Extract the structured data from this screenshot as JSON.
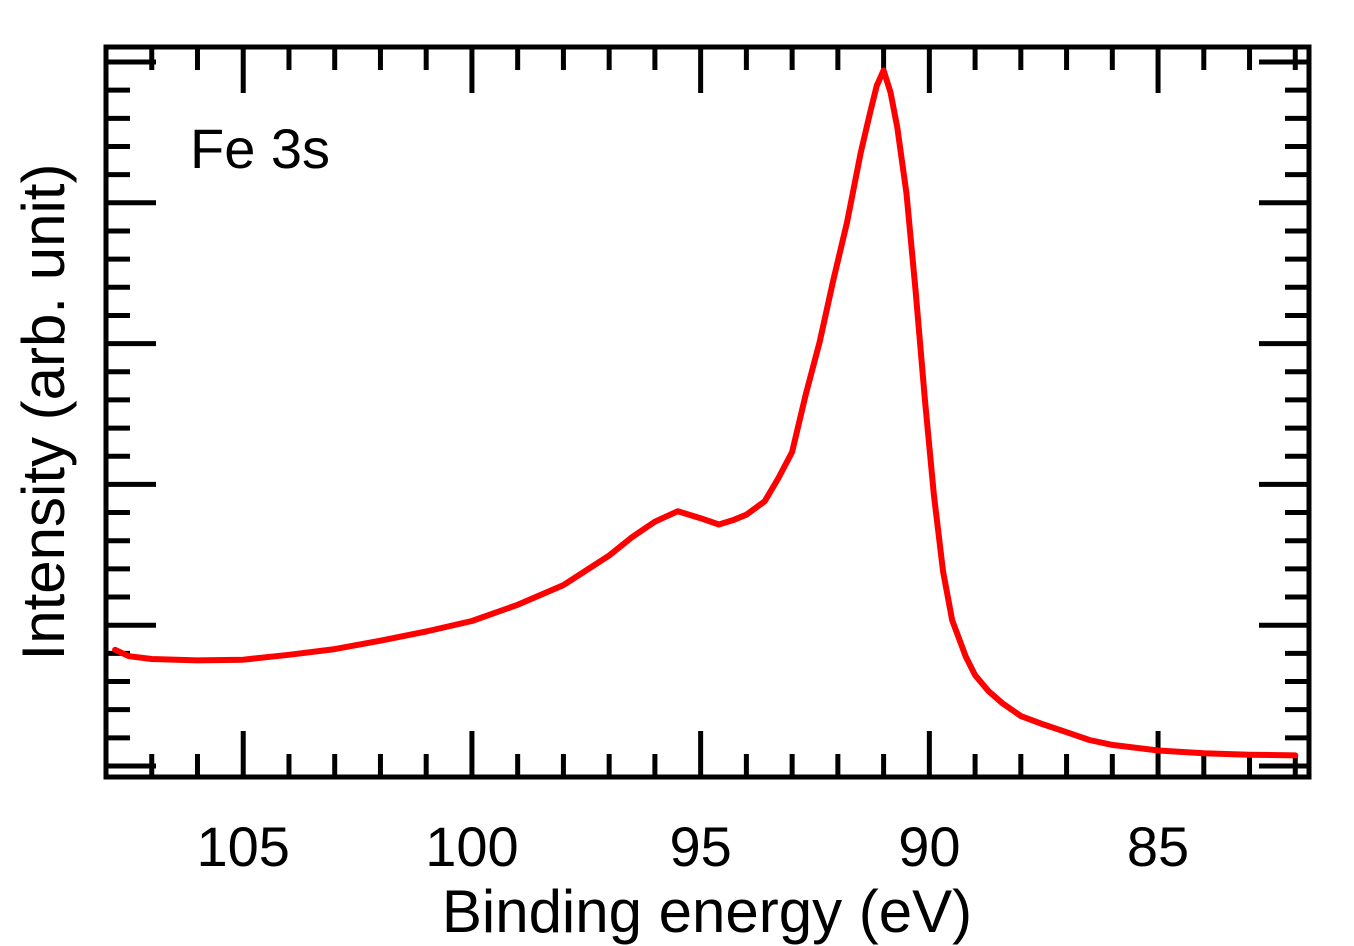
{
  "chart_data": {
    "type": "line",
    "title": "",
    "annotation": "Fe 3s",
    "xlabel": "Binding energy (eV)",
    "ylabel": "Intensity (arb. unit)",
    "xlim": [
      108,
      81.7
    ],
    "ylim": [
      0,
      100
    ],
    "x_reversed": true,
    "xticks": [
      105,
      100,
      95,
      90,
      85
    ],
    "xtick_labels": [
      "105",
      "100",
      "95",
      "90",
      "85"
    ],
    "y_tick_labels_shown": false,
    "grid": false,
    "legend": "none",
    "line_color": "#ff0000",
    "series": [
      {
        "name": "Fe 3s",
        "x": [
          107.8,
          107.5,
          107.0,
          106.0,
          105.0,
          104.0,
          103.0,
          102.0,
          101.0,
          100.0,
          99.0,
          98.0,
          97.5,
          97.0,
          96.5,
          96.0,
          95.5,
          95.0,
          94.6,
          94.3,
          94.0,
          93.6,
          93.3,
          93.0,
          92.7,
          92.4,
          92.1,
          91.8,
          91.5,
          91.3,
          91.15,
          91.0,
          90.85,
          90.7,
          90.5,
          90.3,
          90.1,
          89.9,
          89.7,
          89.5,
          89.2,
          89.0,
          88.7,
          88.4,
          88.0,
          87.5,
          87.0,
          86.5,
          86.0,
          85.0,
          84.0,
          83.0,
          82.0
        ],
        "y": [
          16.5,
          15.6,
          15.2,
          15.0,
          15.1,
          15.8,
          16.6,
          17.8,
          19.1,
          20.6,
          22.9,
          25.7,
          27.8,
          29.9,
          32.5,
          34.7,
          36.2,
          35.2,
          34.3,
          34.9,
          35.7,
          37.6,
          40.9,
          44.6,
          52.8,
          60.2,
          69.0,
          77.2,
          87.1,
          92.7,
          96.6,
          98.8,
          95.7,
          90.7,
          81.3,
          67.5,
          52.2,
          38.5,
          27.6,
          20.7,
          15.5,
          12.9,
          10.6,
          8.9,
          7.1,
          5.9,
          4.8,
          3.7,
          3.0,
          2.2,
          1.8,
          1.6,
          1.5
        ]
      }
    ]
  }
}
